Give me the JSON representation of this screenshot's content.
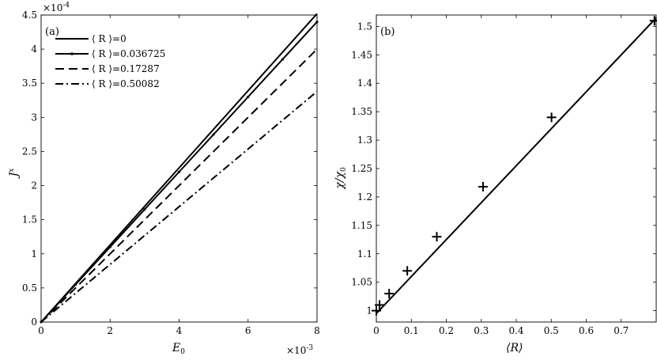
{
  "chart_data": [
    {
      "type": "line",
      "panel_tag": "(a)",
      "xlabel": "E",
      "xlabel_sub": "0",
      "ylabel": "J",
      "ylabel_sup": "x",
      "x_multiplier": "×10",
      "x_multiplier_exp": "-3",
      "y_multiplier": "×10",
      "y_multiplier_exp": "-4",
      "xlim": [
        0,
        8
      ],
      "ylim": [
        0,
        4.5
      ],
      "xticks": [
        "0",
        "2",
        "4",
        "6",
        "8"
      ],
      "yticks": [
        "0",
        "0.5",
        "1",
        "1.5",
        "2",
        "2.5",
        "3",
        "3.5",
        "4",
        "4.5"
      ],
      "legend_position": "top-left",
      "x": [
        0,
        8
      ],
      "series": [
        {
          "name": "⟨ R ⟩=0",
          "style": "solid",
          "values": [
            0,
            4.52
          ]
        },
        {
          "name": "⟨ R ⟩=0.036725",
          "style": "solid-dot",
          "values": [
            0,
            4.4
          ]
        },
        {
          "name": "⟨ R ⟩=0.17287",
          "style": "dashed",
          "values": [
            0,
            4.0
          ]
        },
        {
          "name": "⟨ R ⟩=0.50082",
          "style": "dashdot",
          "values": [
            0,
            3.38
          ]
        }
      ]
    },
    {
      "type": "scatter",
      "panel_tag": "(b)",
      "xlabel": "⟨R⟩",
      "ylabel": "χ/χ",
      "ylabel_sub": "0",
      "xlim": [
        0,
        0.8
      ],
      "ylim": [
        0.98,
        1.52
      ],
      "xticks": [
        "0",
        "0.1",
        "0.2",
        "0.3",
        "0.4",
        "0.5",
        "0.6",
        "0.7"
      ],
      "yticks": [
        "1",
        "1.05",
        "1.1",
        "1.15",
        "1.2",
        "1.25",
        "1.3",
        "1.35",
        "1.4",
        "1.45",
        "1.5"
      ],
      "points": [
        {
          "x": 0,
          "y": 1.0
        },
        {
          "x": 0.0092,
          "y": 1.01
        },
        {
          "x": 0.0367,
          "y": 1.03
        },
        {
          "x": 0.0885,
          "y": 1.07
        },
        {
          "x": 0.1729,
          "y": 1.13
        },
        {
          "x": 0.305,
          "y": 1.218
        },
        {
          "x": 0.5008,
          "y": 1.34
        },
        {
          "x": 0.795,
          "y": 1.51
        }
      ],
      "fit_line": {
        "x": [
          0,
          0.8
        ],
        "y": [
          0.995,
          1.515
        ]
      }
    }
  ]
}
